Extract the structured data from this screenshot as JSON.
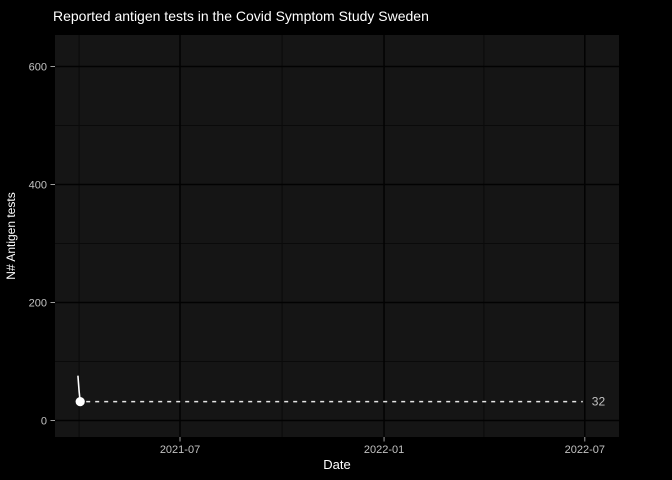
{
  "chart_data": {
    "type": "line",
    "title": "Reported antigen tests in the Covid Symptom Study Sweden",
    "xlabel": "Date",
    "ylabel": "N# Antigen tests",
    "grid": true,
    "legend": "none",
    "background_color": "#000000",
    "panel_color": "#151515",
    "grid_major_color": "#020202",
    "grid_minor_color": "#0a0a0a",
    "tick_color": "#9e9e9e",
    "tick_label_color": "#c2c2c2",
    "text_color": "#ffffff",
    "x_range": [
      "2021-03-10",
      "2022-07-31"
    ],
    "y_range": [
      -28,
      653
    ],
    "x_ticks": [
      {
        "label": "2021-07",
        "date": "2021-07-01"
      },
      {
        "label": "2022-01",
        "date": "2022-01-01"
      },
      {
        "label": "2022-07",
        "date": "2022-07-01"
      }
    ],
    "x_minor_gridlines": [
      "2021-04-01",
      "2021-10-01",
      "2022-04-01"
    ],
    "y_ticks": [
      {
        "label": "0",
        "value": 0
      },
      {
        "label": "200",
        "value": 200
      },
      {
        "label": "400",
        "value": 400
      },
      {
        "label": "600",
        "value": 600
      }
    ],
    "y_minor_gridlines": [
      100,
      300,
      500
    ],
    "series": [
      {
        "name": "reported-antigen-tests",
        "color": "#ffffff",
        "points": [
          {
            "date": "2021-03-31",
            "value": 75
          },
          {
            "date": "2021-04-01",
            "value": 50
          },
          {
            "date": "2021-04-02",
            "value": 32
          }
        ],
        "end_marker": {
          "date": "2021-04-02",
          "value": 32
        }
      }
    ],
    "annotation": {
      "type": "dashed-hline",
      "value": 32,
      "label": "32",
      "from_date": "2021-04-02",
      "to_date": "2022-07-01",
      "color": "#e6e6e6"
    }
  }
}
